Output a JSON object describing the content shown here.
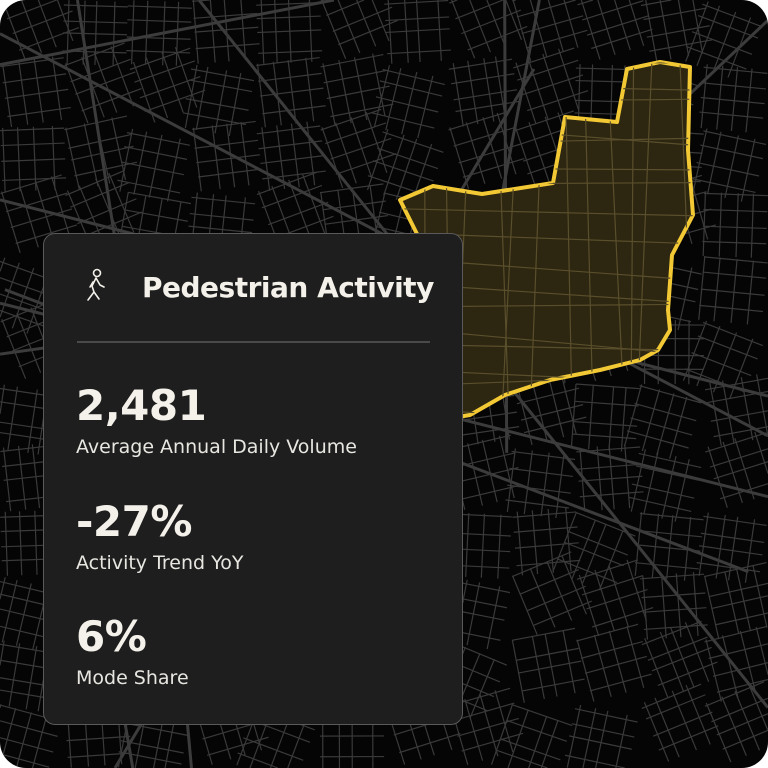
{
  "card": {
    "icon": "pedestrian-walking-icon",
    "title": "Pedestrian Activity",
    "stats": [
      {
        "value": "2,481",
        "label": "Average Annual Daily Volume"
      },
      {
        "value": "-27%",
        "label": "Activity Trend YoY"
      },
      {
        "value": "6%",
        "label": "Mode Share"
      }
    ]
  },
  "map": {
    "theme": "dark",
    "highlight_color": "#f2c935",
    "highlight_fill": "#2d2610",
    "background": "#050505",
    "road_color": "#3a3a3a"
  }
}
